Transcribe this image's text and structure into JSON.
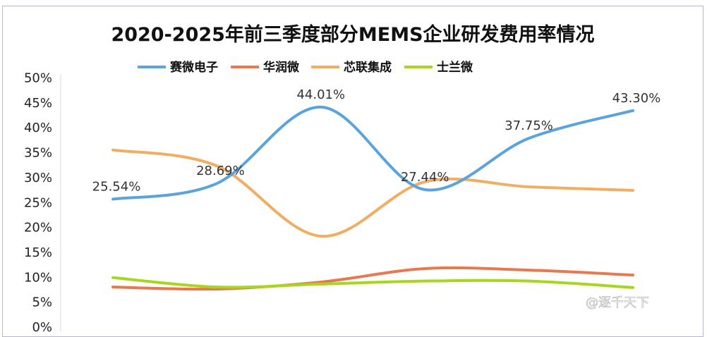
{
  "chart_data": {
    "type": "line",
    "title": "2020-2025年前三季度部分MEMS企业研发费用率情况",
    "xlabel": "",
    "ylabel": "",
    "ylim": [
      0,
      50
    ],
    "yticks": [
      "0%",
      "5%",
      "10%",
      "15%",
      "20%",
      "25%",
      "30%",
      "35%",
      "40%",
      "45%",
      "50%"
    ],
    "grid": false,
    "legend": "top",
    "smooth": true,
    "series": [
      {
        "name": "赛微电子",
        "color": "#5ba3dc",
        "values": [
          25.54,
          28.69,
          44.01,
          27.44,
          37.75,
          43.3
        ],
        "labels": [
          "25.54%",
          "28.69%",
          "44.01%",
          "27.44%",
          "37.75%",
          "43.30%"
        ]
      },
      {
        "name": "华润微",
        "color": "#e8784e",
        "values": [
          7.9,
          7.5,
          8.9,
          11.6,
          11.3,
          10.3
        ]
      },
      {
        "name": "芯联集成",
        "color": "#f1ae62",
        "values": [
          35.4,
          32.2,
          18.1,
          29.0,
          28.0,
          27.3
        ]
      },
      {
        "name": "士兰微",
        "color": "#a6d61e",
        "values": [
          9.8,
          7.9,
          8.5,
          9.1,
          9.1,
          7.8
        ]
      }
    ]
  },
  "watermark": "@逐千天下"
}
